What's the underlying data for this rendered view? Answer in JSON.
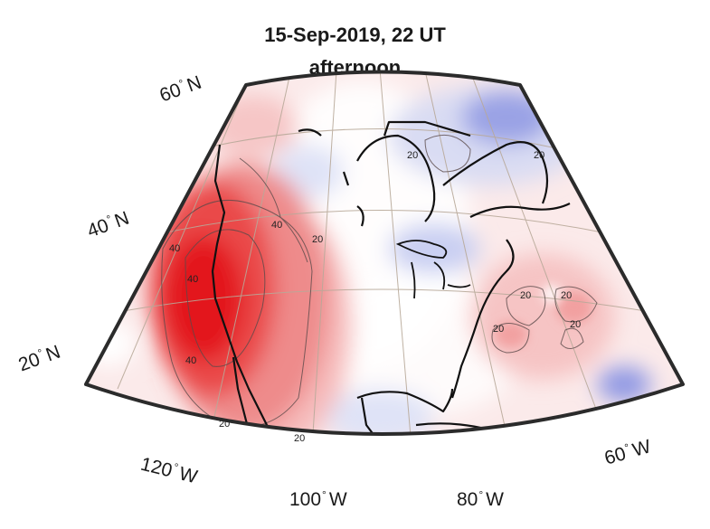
{
  "title": {
    "line1": "15-Sep-2019, 22 UT",
    "line2": "afternoon"
  },
  "lat_labels": [
    {
      "value": "60",
      "hemisphere": "N"
    },
    {
      "value": "40",
      "hemisphere": "N"
    },
    {
      "value": "20",
      "hemisphere": "N"
    }
  ],
  "lon_labels": [
    {
      "value": "120",
      "hemisphere": "W"
    },
    {
      "value": "100",
      "hemisphere": "W"
    },
    {
      "value": "80",
      "hemisphere": "W"
    },
    {
      "value": "60",
      "hemisphere": "W"
    }
  ],
  "contour_labels": [
    "40",
    "40",
    "40",
    "40",
    "20",
    "20",
    "20",
    "20",
    "20",
    "20",
    "20",
    "20",
    "20"
  ],
  "colors": {
    "frame": "#2b2b2b",
    "graticule": "#b8a999",
    "coast": "#111111",
    "strong_positive": "#e8141e",
    "positive": "#f07a7a",
    "weak_positive": "#f8c9c9",
    "weak_negative": "#d6dcf4",
    "negative": "#8f98e4"
  }
}
